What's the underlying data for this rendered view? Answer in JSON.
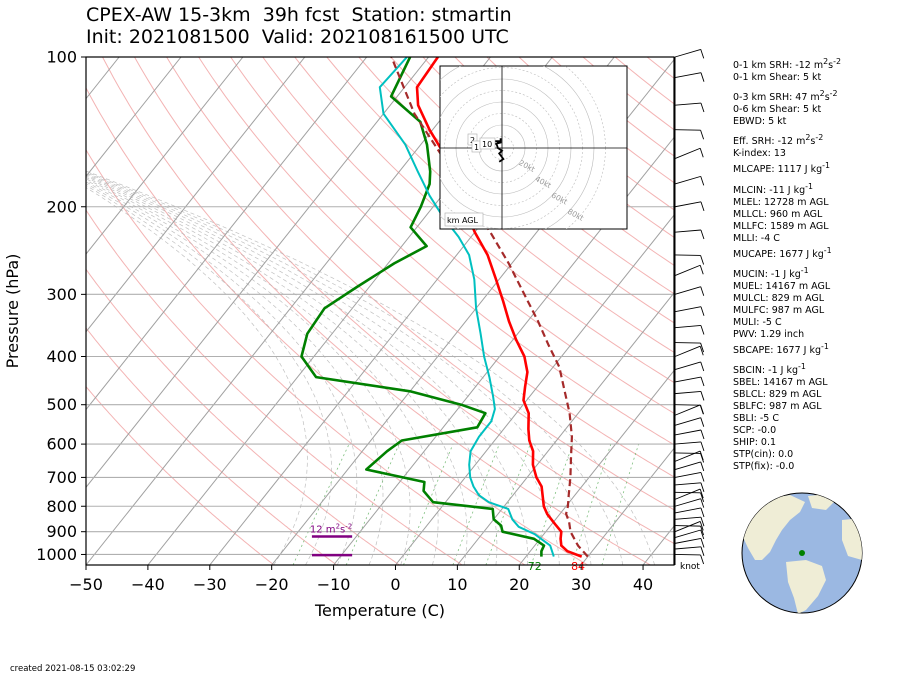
{
  "title": {
    "line1": "CPEX-AW 15-3km  39h fcst  Station: stmartin",
    "line2": "Init: 2021081500  Valid: 202108161500 UTC"
  },
  "footer": {
    "created": "created 2021-08-15 03:02:29"
  },
  "colors": {
    "temperature": "#ff0000",
    "dewpoint": "#008000",
    "wetbulb": "#00c0c0",
    "parcel": "#a52a2a",
    "srh_bar": "#800080",
    "isotherm": "#a0a0a0",
    "dry_adiabat": "#f0a0a0",
    "mixing_ratio": "#80c080"
  },
  "chart_data": {
    "type": "skew-t",
    "ylabel": "Pressure (hPa)",
    "xlabel": "Temperature (C)",
    "xlim": [
      -50,
      45
    ],
    "ylim": [
      1050,
      100
    ],
    "pressure_ticks": [
      "1000",
      "900",
      "800",
      "700",
      "600",
      "500",
      "400",
      "300",
      "200",
      "100"
    ],
    "pressure_tick_values": [
      1000,
      900,
      800,
      700,
      600,
      500,
      400,
      300,
      200,
      100
    ],
    "temp_ticks": [
      "−50",
      "−40",
      "−30",
      "−20",
      "−10",
      "0",
      "10",
      "20",
      "30",
      "40"
    ],
    "temp_tick_values": [
      -50,
      -40,
      -30,
      -20,
      -10,
      0,
      10,
      20,
      30,
      40
    ],
    "skew_degrees_per_decade": 64,
    "series": [
      {
        "name": "",
        "role": "temperature",
        "color": "#ff0000",
        "points": [
          [
            1010,
            29
          ],
          [
            985,
            26
          ],
          [
            960,
            24.3
          ],
          [
            930,
            23.3
          ],
          [
            900,
            22.5
          ],
          [
            870,
            20.6
          ],
          [
            830,
            18
          ],
          [
            800,
            16.4
          ],
          [
            770,
            15.2
          ],
          [
            730,
            13.5
          ],
          [
            700,
            11.5
          ],
          [
            660,
            9.3
          ],
          [
            620,
            7.6
          ],
          [
            590,
            5.6
          ],
          [
            560,
            4
          ],
          [
            520,
            2
          ],
          [
            490,
            -0.5
          ],
          [
            460,
            -2
          ],
          [
            430,
            -3.5
          ],
          [
            400,
            -6
          ],
          [
            370,
            -9.5
          ],
          [
            340,
            -13
          ],
          [
            310,
            -16.5
          ],
          [
            280,
            -20.5
          ],
          [
            250,
            -25
          ],
          [
            225,
            -30
          ],
          [
            200,
            -35
          ],
          [
            180,
            -39
          ],
          [
            160,
            -44
          ],
          [
            140,
            -50.5
          ],
          [
            125,
            -55.5
          ],
          [
            115,
            -58
          ],
          [
            100,
            -58.5
          ]
        ]
      },
      {
        "name": "",
        "role": "dewpoint",
        "color": "#008000",
        "points": [
          [
            1010,
            22.5
          ],
          [
            985,
            21.8
          ],
          [
            960,
            21.5
          ],
          [
            930,
            19
          ],
          [
            900,
            13
          ],
          [
            875,
            12
          ],
          [
            850,
            10
          ],
          [
            810,
            8.5
          ],
          [
            785,
            -2
          ],
          [
            745,
            -5
          ],
          [
            715,
            -6
          ],
          [
            675,
            -17
          ],
          [
            620,
            -16
          ],
          [
            590,
            -15
          ],
          [
            555,
            -4.5
          ],
          [
            520,
            -5
          ],
          [
            500,
            -10
          ],
          [
            470,
            -20
          ],
          [
            440,
            -37
          ],
          [
            400,
            -42
          ],
          [
            360,
            -44
          ],
          [
            320,
            -44.5
          ],
          [
            290,
            -42
          ],
          [
            260,
            -39
          ],
          [
            240,
            -36
          ],
          [
            220,
            -41
          ],
          [
            200,
            -42
          ],
          [
            180,
            -43.5
          ],
          [
            170,
            -45
          ],
          [
            150,
            -49
          ],
          [
            135,
            -53
          ],
          [
            120,
            -61
          ],
          [
            100,
            -63
          ]
        ]
      },
      {
        "name": "",
        "role": "wetbulb",
        "color": "#00c0c0",
        "points": [
          [
            1010,
            24.5
          ],
          [
            960,
            22.5
          ],
          [
            910,
            18.5
          ],
          [
            880,
            15
          ],
          [
            850,
            13
          ],
          [
            810,
            11
          ],
          [
            785,
            7
          ],
          [
            760,
            4.5
          ],
          [
            730,
            2.5
          ],
          [
            700,
            0.8
          ],
          [
            660,
            -1
          ],
          [
            620,
            -2.5
          ],
          [
            580,
            -3
          ],
          [
            540,
            -3
          ],
          [
            510,
            -4
          ],
          [
            480,
            -6
          ],
          [
            440,
            -9
          ],
          [
            400,
            -12.5
          ],
          [
            360,
            -16
          ],
          [
            320,
            -20
          ],
          [
            280,
            -24
          ],
          [
            250,
            -28
          ],
          [
            230,
            -32
          ],
          [
            210,
            -37
          ],
          [
            190,
            -42
          ],
          [
            170,
            -47
          ],
          [
            150,
            -52.5
          ],
          [
            130,
            -60
          ],
          [
            115,
            -64
          ],
          [
            100,
            -63.5
          ]
        ]
      },
      {
        "name": "",
        "role": "parcel",
        "color": "#a52a2a",
        "points": [
          [
            1010,
            30
          ],
          [
            960,
            27
          ],
          [
            900,
            24
          ],
          [
            860,
            22.5
          ],
          [
            829,
            21
          ],
          [
            800,
            20.3
          ],
          [
            760,
            19
          ],
          [
            700,
            17
          ],
          [
            640,
            14.6
          ],
          [
            580,
            12
          ],
          [
            520,
            8.6
          ],
          [
            470,
            5
          ],
          [
            420,
            1
          ],
          [
            380,
            -3.5
          ],
          [
            340,
            -8.3
          ],
          [
            300,
            -14
          ],
          [
            260,
            -20.5
          ],
          [
            225,
            -27.5
          ],
          [
            190,
            -36
          ],
          [
            160,
            -44.5
          ],
          [
            130,
            -55
          ],
          [
            110,
            -62
          ],
          [
            100,
            -66
          ]
        ]
      }
    ],
    "surface_labels": [
      {
        "text": "72",
        "temp": 22.5,
        "color": "#008000"
      },
      {
        "text": "84",
        "temp": 29.5,
        "color": "#ff0000"
      }
    ],
    "srh_bars": [
      {
        "pressure": 920,
        "t_start": -13.5,
        "t_end": -7,
        "label": "12 m$^2$s$^{-2}$"
      },
      {
        "pressure": 1003,
        "t_start": -13.5,
        "t_end": -7,
        "label": ""
      }
    ],
    "wind_units_label": "knot",
    "hodograph": {
      "ring_labels": [
        "20kt",
        "40kt",
        "60kt",
        "80kt"
      ],
      "height_labels": [
        "2",
        "1",
        "10"
      ],
      "corner_label": "km AGL",
      "trace_uv": [
        [
          -2,
          -10
        ],
        [
          1,
          -8
        ],
        [
          -2,
          -4
        ],
        [
          0,
          -2
        ],
        [
          -3,
          0
        ],
        [
          -4,
          3
        ],
        [
          -2,
          5
        ],
        [
          -1,
          5
        ],
        [
          -6,
          5
        ],
        [
          -5,
          3
        ],
        [
          -1,
          4
        ],
        [
          -1,
          7
        ]
      ]
    }
  },
  "indices": [
    "0-1 km SRH: -12 m$^2$s$^{-2}$",
    "0-1 km Shear: 5 kt",
    "gap",
    "0-3 km SRH: 47 m$^2$s$^{-2}$",
    "0-6 km Shear: 5 kt",
    "EBWD: 5 kt",
    "gap",
    "Eff. SRH: -12 m$^2$s$^{-2}$",
    "K-index: 13",
    "MLCAPE: 1117 J kg$^{-1}$",
    "gap",
    "MLCIN: -11 J kg$^{-1}$",
    "MLEL: 12728 m AGL",
    "MLLCL: 960 m AGL",
    "MLLFC: 1589 m AGL",
    "MLLI: -4 C",
    "MUCAPE: 1677 J kg$^{-1}$",
    "gap",
    "MUCIN: -1 J kg$^{-1}$",
    "MUEL: 14167 m AGL",
    "MULCL: 829 m AGL",
    "MULFC: 987 m AGL",
    "MULI: -5 C",
    "PWV: 1.29 inch",
    "SBCAPE: 1677 J kg$^{-1}$",
    "gap",
    "SBCIN: -1 J kg$^{-1}$",
    "SBEL: 14167 m AGL",
    "SBLCL: 829 m AGL",
    "SBLFC: 987 m AGL",
    "SBLI: -5 C",
    "SCP: -0.0",
    "SHIP: 0.1",
    "STP(cin): 0.0",
    "STP(fix): -0.0"
  ]
}
